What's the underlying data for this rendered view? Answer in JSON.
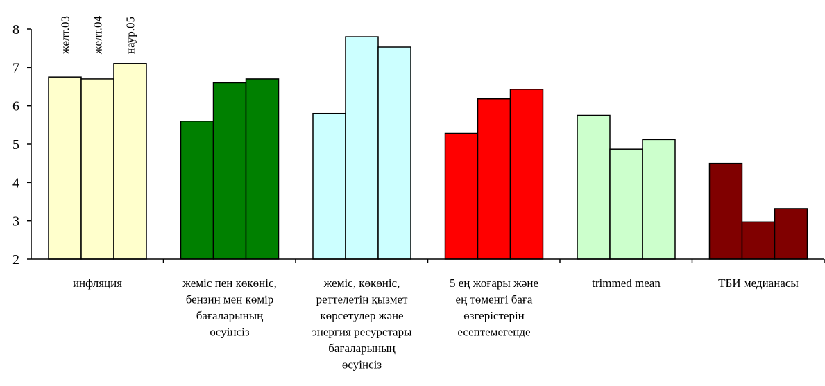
{
  "chart_data": {
    "type": "bar",
    "series": [
      {
        "name": "желт.03",
        "values": [
          6.75,
          5.6,
          5.8,
          5.28,
          5.75,
          4.5
        ]
      },
      {
        "name": "желт.04",
        "values": [
          6.7,
          6.6,
          7.8,
          6.18,
          4.87,
          2.97
        ]
      },
      {
        "name": "наур.05",
        "values": [
          7.1,
          6.7,
          7.53,
          6.43,
          5.12,
          3.32
        ]
      }
    ],
    "categories": [
      [
        "инфляция"
      ],
      [
        "жеміс пен көкөніс,",
        "бензин мен көмір",
        "бағаларының",
        "өсуінсіз"
      ],
      [
        "жеміс, көкөніс,",
        "реттелетін қызмет",
        "көрсетулер және",
        "энергия ресурстары",
        "бағаларының",
        "өсуінсіз"
      ],
      [
        "5 ең жоғары және",
        "ең төменгі баға",
        "өзгерістерін",
        "есептемегенде"
      ],
      [
        "trimmed mean"
      ],
      [
        "ТБИ медианасы"
      ]
    ],
    "group_colors": [
      "#FFFFCC",
      "#008000",
      "#CCFFFF",
      "#FF0000",
      "#CCFFCC",
      "#800000"
    ],
    "ylim": [
      2,
      8
    ],
    "yticks": [
      2,
      3,
      4,
      5,
      6,
      7,
      8
    ],
    "grid": false,
    "legend": "rotated labels above first group"
  }
}
